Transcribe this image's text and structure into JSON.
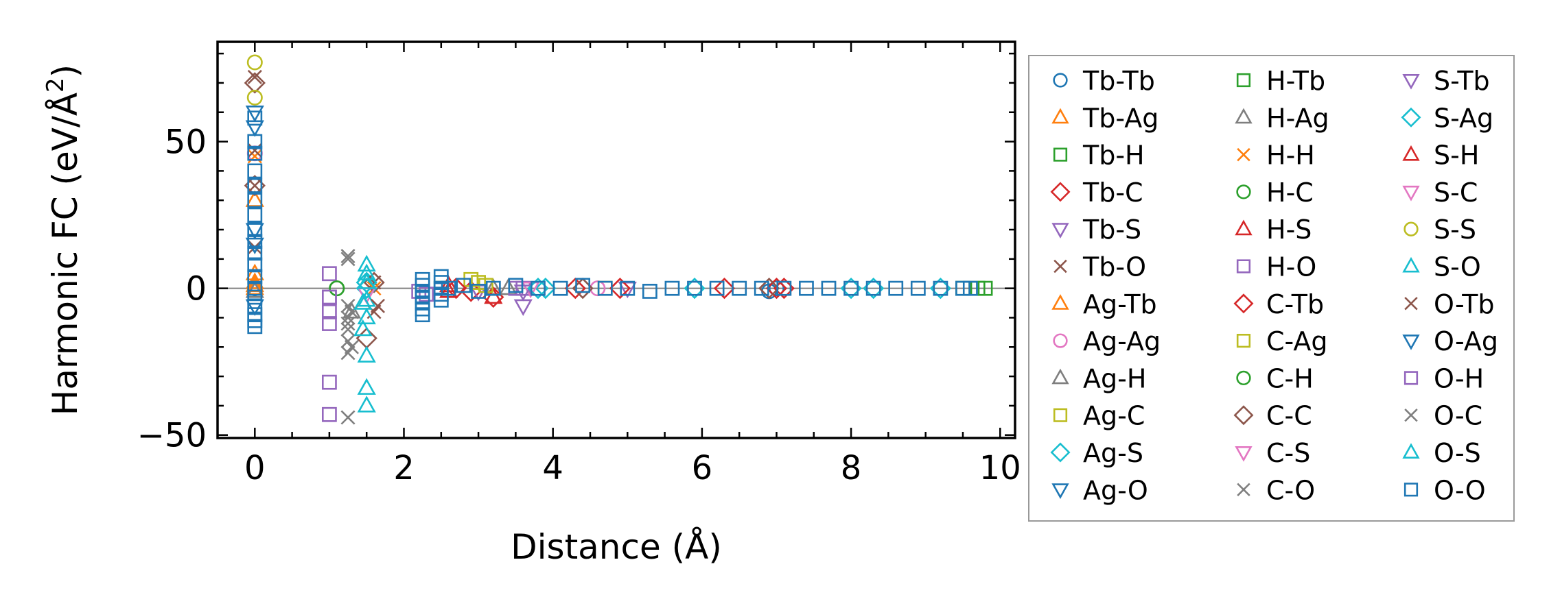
{
  "chart_data": {
    "type": "scatter",
    "title": "",
    "xlabel": "Distance (Å)",
    "ylabel": "Harmonic FC (eV/Å",
    "ylabel_superscript": "2",
    "ylabel_suffix": ")",
    "xlim": [
      -0.5,
      10.2
    ],
    "ylim": [
      -51,
      84
    ],
    "x_ticks": [
      0,
      2,
      4,
      6,
      8,
      10
    ],
    "y_ticks": [
      -50,
      0,
      50
    ],
    "x_tick_labels": [
      "0",
      "2",
      "4",
      "6",
      "8",
      "10"
    ],
    "y_tick_labels": [
      "−50",
      "0",
      "50"
    ],
    "zero_line": 0,
    "grid": false,
    "legend_position": "outside-right",
    "legend_columns": 3,
    "series": [
      {
        "name": "Tb-Tb",
        "marker": "circle",
        "color": "#1f77b4",
        "x": [
          0,
          6.9,
          7.0
        ],
        "y": [
          0,
          -1,
          0
        ]
      },
      {
        "name": "Tb-Ag",
        "marker": "triangle-up",
        "color": "#ff7f0e",
        "x": [
          0,
          0,
          0
        ],
        "y": [
          2,
          0,
          1
        ]
      },
      {
        "name": "Tb-H",
        "marker": "square",
        "color": "#2ca02c",
        "x": [
          2.5,
          9.5,
          9.7
        ],
        "y": [
          0,
          0,
          0
        ]
      },
      {
        "name": "Tb-C",
        "marker": "diamond",
        "color": "#d62728",
        "x": [
          2.9,
          3.2,
          4.3,
          6.3,
          7.0
        ],
        "y": [
          -1,
          -3,
          0,
          0,
          0
        ]
      },
      {
        "name": "Tb-S",
        "marker": "triangle-down",
        "color": "#9467bd",
        "x": [
          3.0,
          3.6,
          5.0
        ],
        "y": [
          -1,
          -6,
          0
        ]
      },
      {
        "name": "Tb-O",
        "marker": "x",
        "color": "#8c564b",
        "x": [
          0,
          0,
          0,
          1.6,
          1.6
        ],
        "y": [
          72,
          35,
          14,
          -8,
          2
        ]
      },
      {
        "name": "Ag-Tb",
        "marker": "triangle-up",
        "color": "#ff7f0e",
        "x": [
          0,
          0
        ],
        "y": [
          30,
          5
        ]
      },
      {
        "name": "Ag-Ag",
        "marker": "circle",
        "color": "#e377c2",
        "x": [
          0,
          4.6
        ],
        "y": [
          46,
          0
        ]
      },
      {
        "name": "Ag-H",
        "marker": "triangle-up",
        "color": "#7f7f7f",
        "x": [
          0,
          3.2
        ],
        "y": [
          -1,
          0
        ]
      },
      {
        "name": "Ag-C",
        "marker": "square",
        "color": "#bcbd22",
        "x": [
          2.9,
          3.0,
          4.7
        ],
        "y": [
          3,
          2,
          0
        ]
      },
      {
        "name": "Ag-S",
        "marker": "diamond",
        "color": "#17becf",
        "x": [
          1.5,
          3.9,
          5.9,
          8.0
        ],
        "y": [
          2,
          0,
          0,
          0
        ]
      },
      {
        "name": "Ag-O",
        "marker": "triangle-down",
        "color": "#1f77b4",
        "x": [
          0,
          0,
          0
        ],
        "y": [
          55,
          20,
          -6
        ]
      },
      {
        "name": "H-Tb",
        "marker": "square",
        "color": "#2ca02c",
        "x": [
          9.8
        ],
        "y": [
          0
        ]
      },
      {
        "name": "H-Ag",
        "marker": "triangle-up",
        "color": "#7f7f7f",
        "x": [
          1.3,
          3.4
        ],
        "y": [
          -8,
          0
        ]
      },
      {
        "name": "H-H",
        "marker": "x",
        "color": "#ff7f0e",
        "x": [
          0,
          1.6
        ],
        "y": [
          45,
          0
        ]
      },
      {
        "name": "H-C",
        "marker": "circle",
        "color": "#2ca02c",
        "x": [
          1.1
        ],
        "y": [
          0
        ]
      },
      {
        "name": "H-S",
        "marker": "triangle-up",
        "color": "#d62728",
        "x": [
          2.6,
          3.2
        ],
        "y": [
          -1,
          -3
        ]
      },
      {
        "name": "H-O",
        "marker": "square",
        "color": "#9467bd",
        "x": [
          1.0,
          1.0,
          1.0,
          1.0,
          1.0,
          1.0,
          2.2,
          3.6
        ],
        "y": [
          5,
          -3,
          -8,
          -12,
          -32,
          -43,
          -1,
          0
        ]
      },
      {
        "name": "C-Tb",
        "marker": "diamond",
        "color": "#d62728",
        "x": [
          2.7,
          4.9,
          7.1
        ],
        "y": [
          0,
          0,
          0
        ]
      },
      {
        "name": "C-Ag",
        "marker": "square",
        "color": "#bcbd22",
        "x": [
          3.1
        ],
        "y": [
          1
        ]
      },
      {
        "name": "C-H",
        "marker": "circle",
        "color": "#2ca02c",
        "x": [
          1.1
        ],
        "y": [
          0
        ]
      },
      {
        "name": "C-C",
        "marker": "diamond",
        "color": "#8c564b",
        "x": [
          0,
          0,
          1.5,
          1.6,
          4.4,
          6.9
        ],
        "y": [
          70,
          35,
          -17,
          2,
          0,
          0
        ]
      },
      {
        "name": "C-S",
        "marker": "triangle-down",
        "color": "#e377c2",
        "x": [
          3.7
        ],
        "y": [
          0
        ]
      },
      {
        "name": "C-O",
        "marker": "x",
        "color": "#7f7f7f",
        "x": [
          1.25,
          1.25,
          1.25,
          1.25,
          1.25,
          1.25,
          1.25,
          1.25,
          1.25
        ],
        "y": [
          11,
          10,
          -6,
          -10,
          -12,
          -18,
          -22,
          -44,
          -14
        ]
      },
      {
        "name": "S-Tb",
        "marker": "triangle-down",
        "color": "#9467bd",
        "x": [
          3.6
        ],
        "y": [
          -1
        ]
      },
      {
        "name": "S-Ag",
        "marker": "diamond",
        "color": "#17becf",
        "x": [
          1.5,
          3.8,
          8.3,
          9.2
        ],
        "y": [
          0,
          0,
          0,
          0
        ]
      },
      {
        "name": "S-H",
        "marker": "triangle-up",
        "color": "#d62728",
        "x": [
          2.6
        ],
        "y": [
          1
        ]
      },
      {
        "name": "S-C",
        "marker": "triangle-down",
        "color": "#e377c2",
        "x": [
          1.5
        ],
        "y": [
          -2
        ]
      },
      {
        "name": "S-S",
        "marker": "circle",
        "color": "#bcbd22",
        "x": [
          0,
          0
        ],
        "y": [
          77,
          65
        ]
      },
      {
        "name": "S-O",
        "marker": "triangle-up",
        "color": "#17becf",
        "x": [
          1.5,
          1.5,
          1.5,
          1.5,
          1.5,
          1.5,
          1.5,
          1.5
        ],
        "y": [
          8,
          5,
          2,
          -4,
          -10,
          -23,
          -34,
          -40
        ]
      },
      {
        "name": "O-Tb",
        "marker": "x",
        "color": "#8c564b",
        "x": [
          0,
          1.65
        ],
        "y": [
          47,
          -6
        ]
      },
      {
        "name": "O-Ag",
        "marker": "triangle-down",
        "color": "#1f77b4",
        "x": [
          0,
          0
        ],
        "y": [
          60,
          15
        ]
      },
      {
        "name": "O-H",
        "marker": "square",
        "color": "#9467bd",
        "x": [
          1.0,
          2.3,
          3.5
        ],
        "y": [
          -3,
          -2,
          0
        ]
      },
      {
        "name": "O-C",
        "marker": "x",
        "color": "#7f7f7f",
        "x": [
          1.3,
          1.3
        ],
        "y": [
          -8,
          -20
        ]
      },
      {
        "name": "O-S",
        "marker": "triangle-up",
        "color": "#17becf",
        "x": [
          1.45,
          1.45
        ],
        "y": [
          -5,
          -14
        ]
      },
      {
        "name": "O-O",
        "marker": "square",
        "color": "#1f77b4",
        "x": [
          0,
          0,
          0,
          0,
          0,
          0,
          0,
          0,
          0,
          0,
          0,
          0,
          0,
          0,
          0,
          0,
          0,
          0,
          2.25,
          2.25,
          2.25,
          2.25,
          2.25,
          2.25,
          2.25,
          2.5,
          2.5,
          2.5,
          2.5,
          2.5,
          2.6,
          2.8,
          3.0,
          3.2,
          3.5,
          3.8,
          4.1,
          4.4,
          4.7,
          5.0,
          5.3,
          5.6,
          5.9,
          6.2,
          6.5,
          6.8,
          7.1,
          7.4,
          7.7,
          8.0,
          8.3,
          8.6,
          8.9,
          9.2,
          9.5,
          9.6
        ],
        "y": [
          58,
          50,
          46,
          40,
          35,
          30,
          25,
          20,
          16,
          12,
          8,
          4,
          0,
          -3,
          -6,
          -9,
          -11,
          -13,
          3,
          1,
          -1,
          -3,
          -5,
          -7,
          -9,
          4,
          2,
          0,
          -2,
          -4,
          0,
          1,
          -1,
          0,
          1,
          0,
          0,
          1,
          0,
          0,
          -1,
          0,
          0,
          0,
          0,
          0,
          0,
          0,
          0,
          0,
          0,
          0,
          0,
          0,
          0,
          0
        ]
      }
    ]
  }
}
